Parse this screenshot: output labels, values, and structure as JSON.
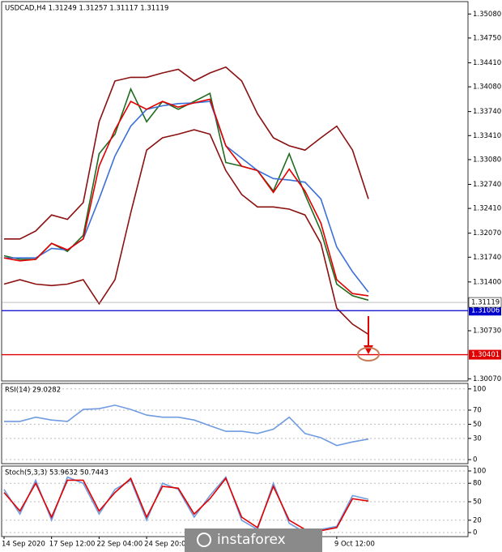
{
  "chart_data": [
    {
      "type": "line",
      "title": "USDCAD,H4  1.31249 1.31257 1.31117 1.31119",
      "categories": [
        "14 Sep 2020",
        null,
        null,
        "17 Sep 12:00",
        null,
        null,
        "22 Sep 04:00",
        null,
        null,
        "24 Sep 20:00",
        null,
        null,
        null,
        null,
        null,
        null,
        null,
        null,
        null,
        null,
        null,
        "9 Oct 12:00",
        null,
        null
      ],
      "series": [
        {
          "color": "#1f6b1f",
          "values": [
            1.3176,
            1.3171,
            1.3171,
            1.3193,
            1.3182,
            1.3204,
            1.3316,
            1.3343,
            1.3405,
            1.336,
            1.3388,
            1.3377,
            1.3388,
            1.3399,
            1.3304,
            1.3299,
            1.3293,
            1.3265,
            1.3316,
            1.326,
            1.321,
            1.3137,
            1.3121,
            1.3115
          ]
        },
        {
          "color": "#8b1010",
          "values": [
            1.3199,
            1.3199,
            1.321,
            1.3232,
            1.3226,
            1.3249,
            1.336,
            1.3416,
            1.3421,
            1.3421,
            1.3427,
            1.3432,
            1.3416,
            1.3427,
            1.3435,
            1.3416,
            1.3371,
            1.3338,
            1.3327,
            1.3321,
            1.3338,
            1.3354,
            1.3321,
            1.3254
          ]
        },
        {
          "color": "#8b1010",
          "values": [
            1.3137,
            1.3143,
            1.3137,
            1.3135,
            1.3137,
            1.3143,
            1.311,
            1.3143,
            1.3235,
            1.3321,
            1.3338,
            1.3343,
            1.3349,
            1.3343,
            1.3293,
            1.326,
            1.3243,
            1.3243,
            1.324,
            1.3232,
            1.3193,
            1.3104,
            1.3082,
            1.3068
          ]
        },
        {
          "color": "#3a6fd8",
          "values": [
            1.3173,
            1.3173,
            1.3173,
            1.3186,
            1.3184,
            1.3199,
            1.3254,
            1.3313,
            1.3354,
            1.3377,
            1.3382,
            1.3385,
            1.3386,
            1.3388,
            1.3327,
            1.331,
            1.3293,
            1.3282,
            1.328,
            1.3277,
            1.3254,
            1.3188,
            1.3154,
            1.3126
          ]
        },
        {
          "color": "#e00000",
          "values": [
            1.3173,
            1.3169,
            1.3171,
            1.3193,
            1.3184,
            1.3199,
            1.3299,
            1.3349,
            1.3388,
            1.3377,
            1.3388,
            1.338,
            1.3386,
            1.3391,
            1.3327,
            1.3299,
            1.3293,
            1.3263,
            1.3295,
            1.3265,
            1.3221,
            1.3143,
            1.3124,
            1.3121
          ]
        }
      ],
      "ylim": [
        1.3004,
        1.3525
      ],
      "yticks": [
        {
          "value": 1.3508,
          "label": "1.35080"
        },
        {
          "value": 1.3475,
          "label": "1.34750"
        },
        {
          "value": 1.3441,
          "label": "1.34410"
        },
        {
          "value": 1.3408,
          "label": "1.34080"
        },
        {
          "value": 1.3374,
          "label": "1.33740"
        },
        {
          "value": 1.3341,
          "label": "1.33410"
        },
        {
          "value": 1.3308,
          "label": "1.33080"
        },
        {
          "value": 1.3274,
          "label": "1.32740"
        },
        {
          "value": 1.3241,
          "label": "1.32410"
        },
        {
          "value": 1.3207,
          "label": "1.32070"
        },
        {
          "value": 1.3174,
          "label": "1.31740"
        },
        {
          "value": 1.314,
          "label": "1.31400"
        },
        {
          "value": 1.3073,
          "label": "1.30730"
        },
        {
          "value": 1.3007,
          "label": "1.30070"
        }
      ],
      "grid": false,
      "last_price": 1.31119,
      "levels": [
        {
          "value": 1.31006,
          "color": "#0000cc"
        },
        {
          "value": 1.30401,
          "color": "#e00000"
        }
      ]
    },
    {
      "type": "line",
      "title": "RSI(14) 29.0282",
      "series": [
        {
          "color": "#6f9be0",
          "values": [
            54,
            54,
            60,
            56,
            54,
            71,
            72,
            77,
            71,
            63,
            60,
            60,
            56,
            48,
            40,
            40,
            37,
            43,
            60,
            37,
            31,
            20,
            25,
            29
          ]
        }
      ],
      "ylim": [
        -5.7,
        107.8
      ],
      "yticks": [
        100,
        70,
        50,
        30,
        0
      ],
      "grid": true
    },
    {
      "type": "line",
      "title": "Stoch(5,3,3) 53.9632 50.7443",
      "series": [
        {
          "color": "#6f9be0",
          "values": [
            70,
            30,
            85,
            20,
            90,
            80,
            30,
            70,
            85,
            20,
            80,
            70,
            25,
            60,
            90,
            20,
            5,
            80,
            15,
            0,
            5,
            10,
            60,
            54
          ]
        },
        {
          "color": "#e00000",
          "values": [
            65,
            35,
            80,
            25,
            85,
            85,
            35,
            65,
            88,
            25,
            75,
            72,
            30,
            55,
            88,
            25,
            8,
            75,
            20,
            5,
            3,
            8,
            55,
            51
          ]
        }
      ],
      "ylim": [
        -6.6,
        107.9
      ],
      "yticks": [
        100,
        80,
        50,
        20,
        0
      ],
      "grid": true
    }
  ],
  "watermark": "instaforex"
}
